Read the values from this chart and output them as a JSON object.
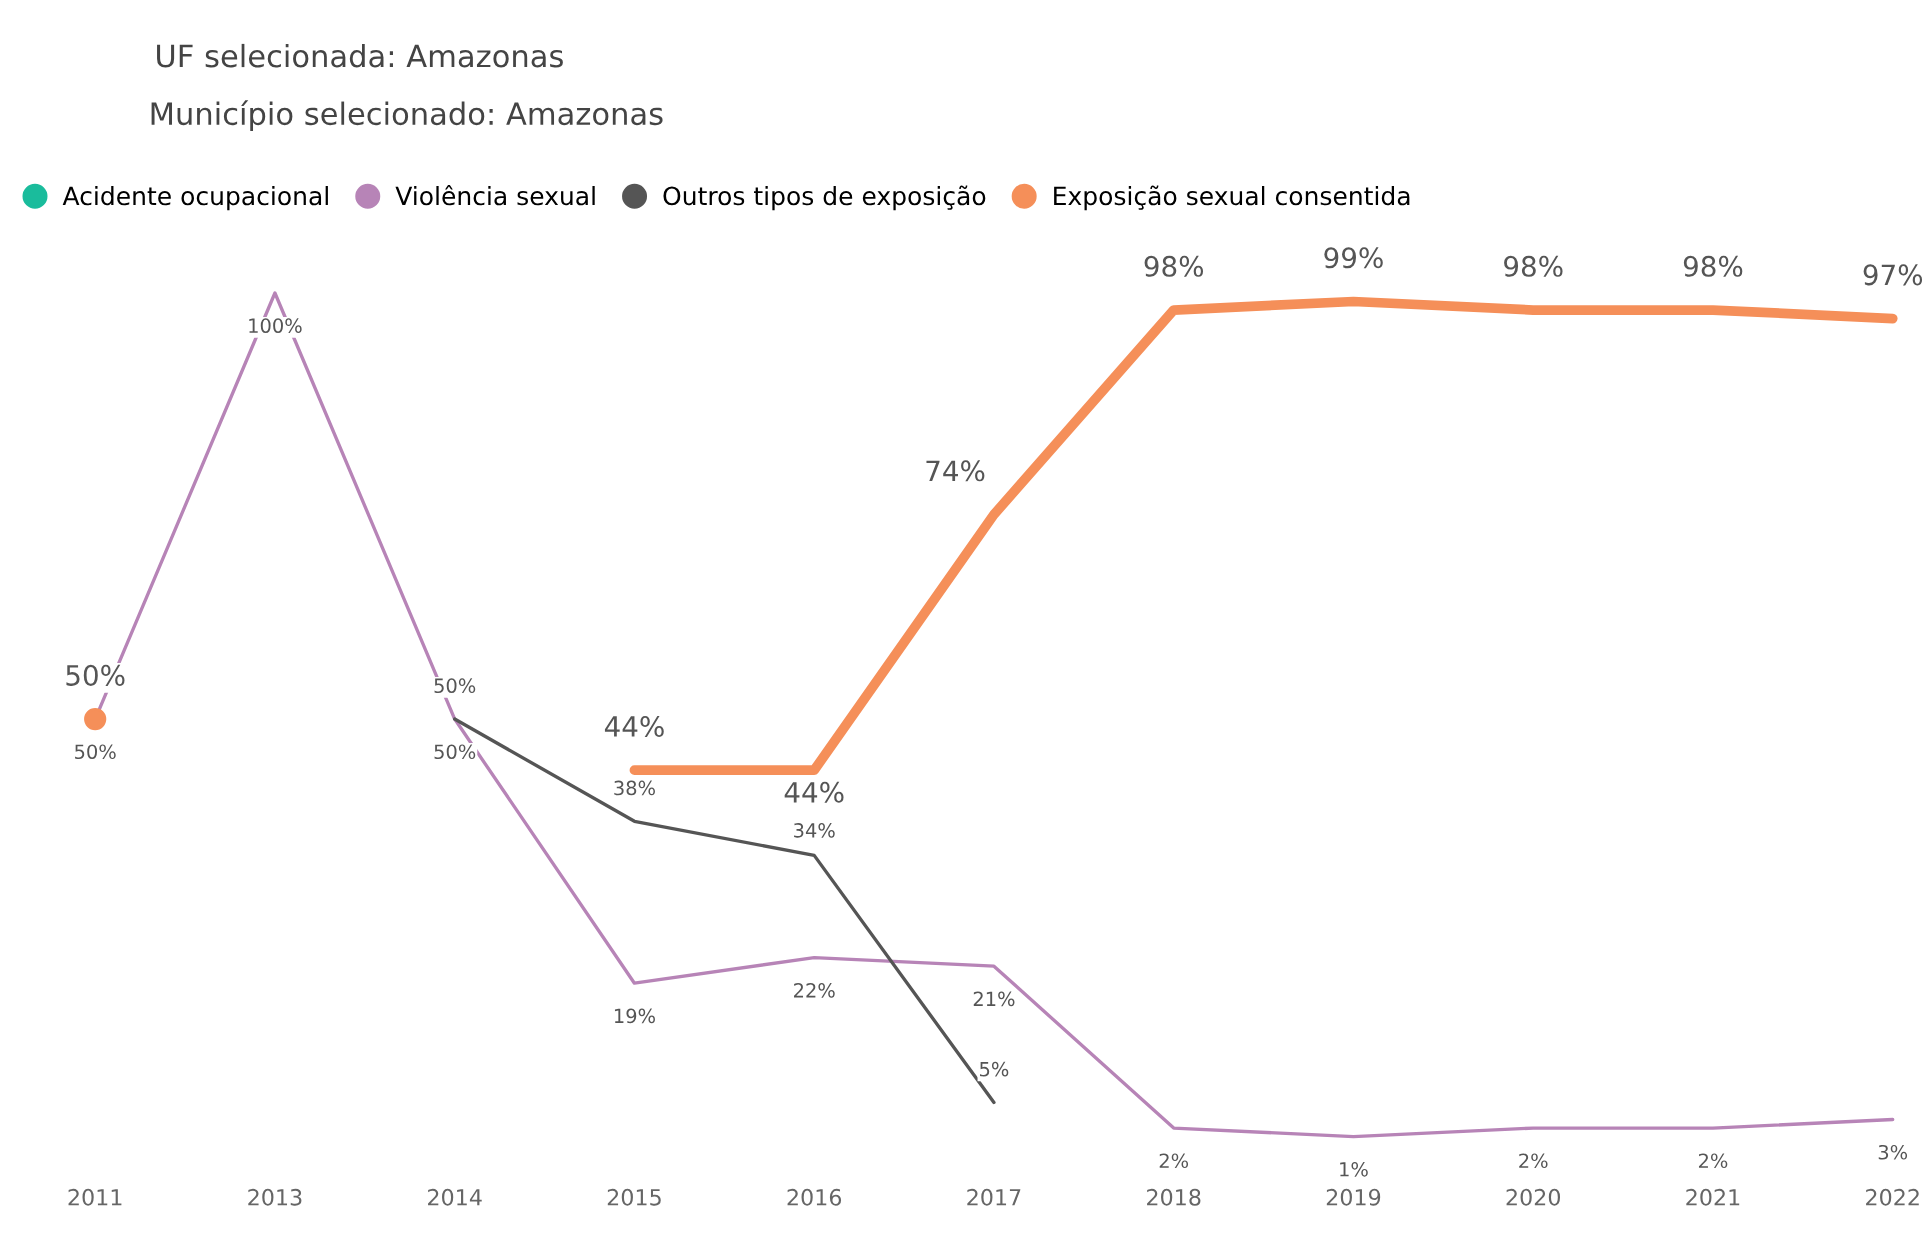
{
  "chart_data": {
    "type": "line",
    "title": "UF selecionada: Amazonas",
    "subtitle": "Município selecionado: Amazonas",
    "categories": [
      "2011",
      "2013",
      "2014",
      "2015",
      "2016",
      "2017",
      "2018",
      "2019",
      "2020",
      "2021",
      "2022"
    ],
    "series": [
      {
        "name": "Acidente ocupacional",
        "color": "#1abc9c",
        "values": [
          null,
          null,
          null,
          null,
          null,
          null,
          null,
          null,
          null,
          null,
          null
        ]
      },
      {
        "name": "Violência sexual",
        "color": "#b784b7",
        "values": [
          50,
          100,
          50,
          19,
          22,
          21,
          2,
          1,
          2,
          2,
          3
        ],
        "value_labels": [
          "50%",
          "100%",
          "50%",
          "19%",
          "22%",
          "21%",
          "2%",
          "1%",
          "2%",
          "2%",
          "3%"
        ]
      },
      {
        "name": "Outros tipos de exposição",
        "color": "#555555",
        "values": [
          null,
          null,
          50,
          38,
          34,
          5,
          null,
          null,
          null,
          null,
          null
        ],
        "value_labels": [
          null,
          null,
          "50%",
          "38%",
          "34%",
          "5%",
          null,
          null,
          null,
          null,
          null
        ]
      },
      {
        "name": "Exposição sexual consentida",
        "color": "#f58f59",
        "values": [
          50,
          null,
          null,
          44,
          44,
          74,
          98,
          99,
          98,
          98,
          97
        ],
        "value_labels": [
          "50%",
          null,
          null,
          "44%",
          "44%",
          "74%",
          "98%",
          "99%",
          "98%",
          "98%",
          "97%"
        ]
      }
    ],
    "legend": "top left",
    "marker": "none",
    "line_style": "solid"
  }
}
